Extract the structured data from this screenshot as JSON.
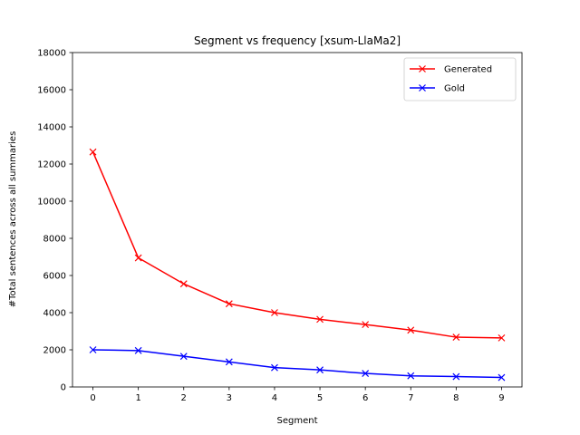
{
  "chart_data": {
    "type": "line",
    "title": "Segment vs frequency [xsum-LlaMa2]",
    "xlabel": "Segment",
    "ylabel": "#Total sentences across all summaries",
    "x": [
      0,
      1,
      2,
      3,
      4,
      5,
      6,
      7,
      8,
      9
    ],
    "xlim": [
      -0.45,
      9.45
    ],
    "ylim": [
      0,
      18000
    ],
    "yticks": [
      0,
      2000,
      4000,
      6000,
      8000,
      10000,
      12000,
      14000,
      16000,
      18000
    ],
    "xticks": [
      0,
      1,
      2,
      3,
      4,
      5,
      6,
      7,
      8,
      9
    ],
    "grid": false,
    "legend_position": "top-right",
    "series": [
      {
        "name": "Generated",
        "color": "#ff0000",
        "marker": "x",
        "values": [
          12650,
          6950,
          5550,
          4480,
          4000,
          3640,
          3360,
          3060,
          2680,
          2640
        ]
      },
      {
        "name": "Gold",
        "color": "#0000ff",
        "marker": "x",
        "values": [
          2000,
          1960,
          1650,
          1350,
          1040,
          920,
          730,
          600,
          560,
          510
        ]
      }
    ]
  }
}
